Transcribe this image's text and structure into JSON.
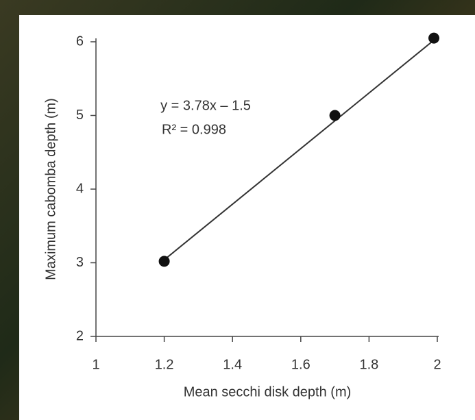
{
  "chart_data": {
    "type": "scatter",
    "x_label": "Mean secchi disk depth (m)",
    "y_label": "Maximum cabomba depth (m)",
    "annotations": [
      "y = 3.78x – 1.5",
      "R² = 0.998"
    ],
    "x": [
      1.2,
      1.7,
      1.99
    ],
    "values": [
      3.02,
      5.0,
      6.05
    ],
    "color": "#111111",
    "fit_line": {
      "x": [
        1.2,
        2
      ],
      "y": [
        3.04,
        6.06
      ]
    },
    "xlim": [
      1,
      2
    ],
    "ylim": [
      2,
      6
    ],
    "xticks": [
      1,
      1.2,
      1.4,
      1.6,
      1.8,
      2
    ],
    "yticks": [
      2,
      3,
      4,
      5,
      6
    ]
  }
}
